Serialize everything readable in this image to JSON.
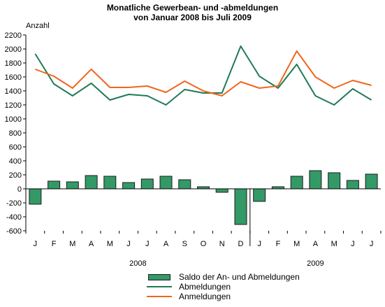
{
  "header": {
    "title_line1": "Monatliche Gewerbean- und -abmeldungen",
    "title_line2": "von Januar 2008 bis Juli 2009"
  },
  "colors": {
    "saldo_fill": "#339966",
    "saldo_stroke": "#1e1e1e",
    "abmeldungen": "#1f7a54",
    "anmeldungen": "#f0661e",
    "axis": "#000000"
  },
  "chart_data": {
    "type": "bar",
    "ylabel": "Anzahl",
    "ylim": [
      -600,
      2200
    ],
    "yticks": [
      -600,
      -400,
      -200,
      0,
      200,
      400,
      600,
      800,
      1000,
      1200,
      1400,
      1600,
      1800,
      2000,
      2200
    ],
    "categories": [
      "J",
      "F",
      "M",
      "A",
      "M",
      "J",
      "J",
      "A",
      "S",
      "O",
      "N",
      "D",
      "J",
      "F",
      "M",
      "A",
      "M",
      "J",
      "J"
    ],
    "year_labels": [
      {
        "label": "2008",
        "from_index": 0,
        "to_index": 11
      },
      {
        "label": "2009",
        "from_index": 12,
        "to_index": 18
      }
    ],
    "grid": false,
    "legend_position": "bottom",
    "series": [
      {
        "name": "Saldo der An- und Abmeldungen",
        "kind": "bar",
        "values": [
          -220,
          110,
          100,
          190,
          180,
          90,
          140,
          180,
          130,
          30,
          -50,
          -510,
          -180,
          30,
          180,
          260,
          230,
          120,
          210
        ]
      },
      {
        "name": "Abmeldungen",
        "kind": "line",
        "values": [
          1930,
          1500,
          1330,
          1510,
          1270,
          1350,
          1330,
          1200,
          1420,
          1370,
          1370,
          2040,
          1610,
          1440,
          1780,
          1330,
          1200,
          1430,
          1270
        ]
      },
      {
        "name": "Anmeldungen",
        "kind": "line",
        "values": [
          1710,
          1610,
          1440,
          1710,
          1450,
          1450,
          1470,
          1380,
          1540,
          1400,
          1330,
          1530,
          1440,
          1470,
          1970,
          1600,
          1440,
          1550,
          1480
        ]
      }
    ]
  }
}
